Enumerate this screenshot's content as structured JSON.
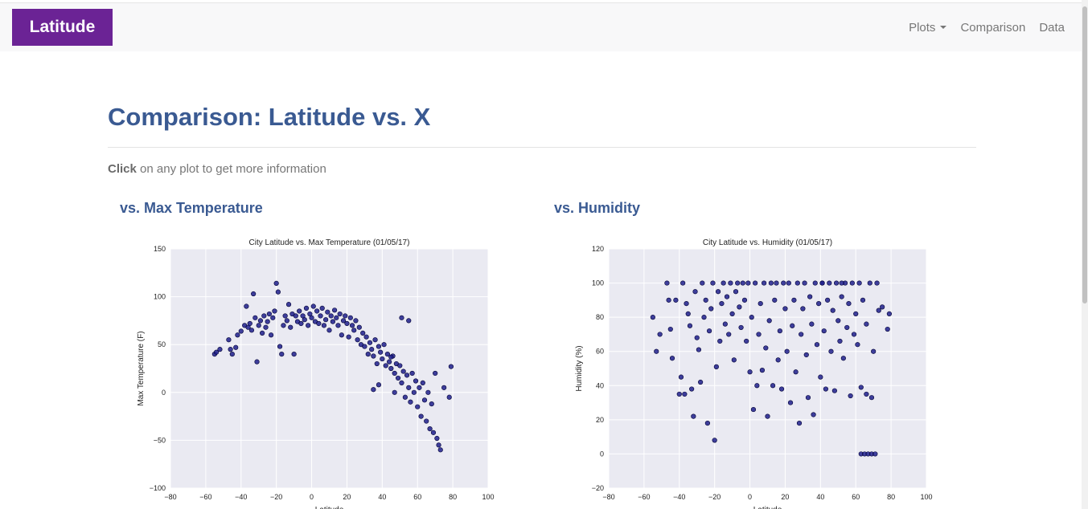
{
  "navbar": {
    "brand": "Latitude",
    "links": [
      {
        "label": "Plots",
        "dropdown": true
      },
      {
        "label": "Comparison",
        "dropdown": false
      },
      {
        "label": "Data",
        "dropdown": false
      }
    ]
  },
  "page": {
    "title": "Comparison: Latitude vs. X",
    "intro_bold": "Click",
    "intro_rest": " on any plot to get more information"
  },
  "colors": {
    "brand_bg": "#6b2395",
    "heading": "#3a5a92",
    "plot_bg": "#eaeaf2",
    "marker": "#1f1f8c"
  },
  "plots": [
    {
      "heading": "vs. Max Temperature",
      "chart_data": {
        "type": "scatter",
        "title": "City Latitude vs. Max Temperature (01/05/17)",
        "xlabel": "Latitude",
        "ylabel": "Max Temperature (F)",
        "xlim": [
          -80,
          100
        ],
        "ylim": [
          -100,
          150
        ],
        "xticks": [
          -80,
          -60,
          -40,
          -20,
          0,
          20,
          40,
          60,
          80,
          100
        ],
        "yticks": [
          -100,
          -50,
          0,
          50,
          100,
          150
        ],
        "grid": true,
        "points": [
          [
            -55,
            40
          ],
          [
            -54,
            42
          ],
          [
            -52,
            45
          ],
          [
            -47,
            55
          ],
          [
            -46,
            45
          ],
          [
            -45,
            40
          ],
          [
            -43,
            47
          ],
          [
            -42,
            60
          ],
          [
            -40,
            64
          ],
          [
            -38,
            70
          ],
          [
            -37,
            90
          ],
          [
            -36,
            68
          ],
          [
            -35,
            72
          ],
          [
            -34,
            65
          ],
          [
            -33,
            103
          ],
          [
            -32,
            78
          ],
          [
            -31,
            32
          ],
          [
            -30,
            70
          ],
          [
            -29,
            75
          ],
          [
            -28,
            62
          ],
          [
            -27,
            80
          ],
          [
            -26,
            68
          ],
          [
            -25,
            74
          ],
          [
            -24,
            82
          ],
          [
            -23,
            60
          ],
          [
            -22,
            78
          ],
          [
            -21,
            85
          ],
          [
            -20,
            114
          ],
          [
            -19,
            105
          ],
          [
            -18,
            48
          ],
          [
            -17,
            40
          ],
          [
            -16,
            70
          ],
          [
            -15,
            80
          ],
          [
            -14,
            75
          ],
          [
            -13,
            92
          ],
          [
            -12,
            68
          ],
          [
            -11,
            82
          ],
          [
            -10,
            40
          ],
          [
            -9,
            80
          ],
          [
            -8,
            74
          ],
          [
            -7,
            85
          ],
          [
            -6,
            72
          ],
          [
            -5,
            80
          ],
          [
            -4,
            76
          ],
          [
            -3,
            88
          ],
          [
            -2,
            70
          ],
          [
            -1,
            82
          ],
          [
            0,
            78
          ],
          [
            1,
            90
          ],
          [
            2,
            74
          ],
          [
            3,
            85
          ],
          [
            4,
            72
          ],
          [
            5,
            80
          ],
          [
            6,
            88
          ],
          [
            7,
            70
          ],
          [
            8,
            76
          ],
          [
            9,
            84
          ],
          [
            10,
            65
          ],
          [
            11,
            80
          ],
          [
            12,
            74
          ],
          [
            13,
            86
          ],
          [
            14,
            78
          ],
          [
            15,
            70
          ],
          [
            16,
            82
          ],
          [
            17,
            60
          ],
          [
            18,
            75
          ],
          [
            19,
            80
          ],
          [
            20,
            72
          ],
          [
            21,
            58
          ],
          [
            22,
            78
          ],
          [
            23,
            70
          ],
          [
            24,
            65
          ],
          [
            25,
            75
          ],
          [
            26,
            55
          ],
          [
            27,
            68
          ],
          [
            28,
            50
          ],
          [
            29,
            62
          ],
          [
            30,
            48
          ],
          [
            31,
            58
          ],
          [
            32,
            40
          ],
          [
            33,
            52
          ],
          [
            34,
            45
          ],
          [
            35,
            38
          ],
          [
            36,
            55
          ],
          [
            37,
            30
          ],
          [
            38,
            48
          ],
          [
            39,
            42
          ],
          [
            40,
            35
          ],
          [
            41,
            50
          ],
          [
            42,
            28
          ],
          [
            43,
            40
          ],
          [
            44,
            32
          ],
          [
            45,
            25
          ],
          [
            46,
            38
          ],
          [
            47,
            20
          ],
          [
            48,
            30
          ],
          [
            49,
            15
          ],
          [
            50,
            28
          ],
          [
            51,
            10
          ],
          [
            52,
            22
          ],
          [
            53,
            -5
          ],
          [
            54,
            18
          ],
          [
            55,
            5
          ],
          [
            56,
            -10
          ],
          [
            57,
            20
          ],
          [
            58,
            0
          ],
          [
            59,
            12
          ],
          [
            60,
            -15
          ],
          [
            61,
            5
          ],
          [
            62,
            -25
          ],
          [
            63,
            10
          ],
          [
            64,
            -8
          ],
          [
            65,
            -30
          ],
          [
            66,
            0
          ],
          [
            67,
            -38
          ],
          [
            68,
            -12
          ],
          [
            69,
            -42
          ],
          [
            70,
            20
          ],
          [
            71,
            -48
          ],
          [
            72,
            -55
          ],
          [
            73,
            -60
          ],
          [
            75,
            5
          ],
          [
            78,
            -5
          ],
          [
            79,
            27
          ],
          [
            51,
            78
          ],
          [
            55,
            75
          ],
          [
            35,
            3
          ],
          [
            38,
            8
          ],
          [
            47,
            0
          ],
          [
            45,
            37
          ]
        ]
      }
    },
    {
      "heading": "vs. Humidity",
      "chart_data": {
        "type": "scatter",
        "title": "City Latitude vs. Humidity (01/05/17)",
        "xlabel": "Latitude",
        "ylabel": "Humidity (%)",
        "xlim": [
          -80,
          100
        ],
        "ylim": [
          -20,
          120
        ],
        "xticks": [
          -80,
          -60,
          -40,
          -20,
          0,
          20,
          40,
          60,
          80,
          100
        ],
        "yticks": [
          -20,
          0,
          20,
          40,
          60,
          80,
          100,
          120
        ],
        "grid": true,
        "points": [
          [
            -55,
            80
          ],
          [
            -53,
            60
          ],
          [
            -51,
            70
          ],
          [
            -47,
            100
          ],
          [
            -46,
            90
          ],
          [
            -45,
            73
          ],
          [
            -44,
            56
          ],
          [
            -42,
            90
          ],
          [
            -40,
            35
          ],
          [
            -39,
            45
          ],
          [
            -38,
            100
          ],
          [
            -37,
            35
          ],
          [
            -36,
            88
          ],
          [
            -35,
            82
          ],
          [
            -34,
            75
          ],
          [
            -33,
            38
          ],
          [
            -32,
            22
          ],
          [
            -31,
            95
          ],
          [
            -30,
            68
          ],
          [
            -29,
            61
          ],
          [
            -28,
            42
          ],
          [
            -27,
            100
          ],
          [
            -26,
            80
          ],
          [
            -25,
            90
          ],
          [
            -24,
            18
          ],
          [
            -23,
            72
          ],
          [
            -22,
            85
          ],
          [
            -21,
            100
          ],
          [
            -20,
            8
          ],
          [
            -19,
            51
          ],
          [
            -18,
            95
          ],
          [
            -17,
            66
          ],
          [
            -16,
            88
          ],
          [
            -15,
            100
          ],
          [
            -14,
            76
          ],
          [
            -13,
            92
          ],
          [
            -12,
            70
          ],
          [
            -11,
            100
          ],
          [
            -10,
            82
          ],
          [
            -9,
            55
          ],
          [
            -8,
            95
          ],
          [
            -7,
            100
          ],
          [
            -6,
            86
          ],
          [
            -5,
            74
          ],
          [
            -4,
            100
          ],
          [
            -3,
            90
          ],
          [
            -2,
            66
          ],
          [
            -1,
            100
          ],
          [
            0,
            48
          ],
          [
            1,
            80
          ],
          [
            2,
            26
          ],
          [
            3,
            100
          ],
          [
            4,
            40
          ],
          [
            5,
            70
          ],
          [
            6,
            88
          ],
          [
            7,
            49
          ],
          [
            8,
            100
          ],
          [
            9,
            62
          ],
          [
            10,
            22
          ],
          [
            11,
            78
          ],
          [
            12,
            100
          ],
          [
            13,
            40
          ],
          [
            14,
            90
          ],
          [
            15,
            100
          ],
          [
            16,
            55
          ],
          [
            17,
            72
          ],
          [
            18,
            38
          ],
          [
            19,
            100
          ],
          [
            20,
            85
          ],
          [
            21,
            60
          ],
          [
            22,
            100
          ],
          [
            23,
            30
          ],
          [
            24,
            75
          ],
          [
            25,
            90
          ],
          [
            26,
            48
          ],
          [
            27,
            100
          ],
          [
            28,
            18
          ],
          [
            29,
            70
          ],
          [
            30,
            85
          ],
          [
            31,
            100
          ],
          [
            32,
            58
          ],
          [
            33,
            33
          ],
          [
            34,
            92
          ],
          [
            35,
            76
          ],
          [
            36,
            23
          ],
          [
            37,
            100
          ],
          [
            38,
            64
          ],
          [
            39,
            88
          ],
          [
            40,
            45
          ],
          [
            41,
            100
          ],
          [
            42,
            72
          ],
          [
            43,
            38
          ],
          [
            44,
            90
          ],
          [
            45,
            100
          ],
          [
            46,
            60
          ],
          [
            47,
            84
          ],
          [
            48,
            37
          ],
          [
            49,
            100
          ],
          [
            50,
            78
          ],
          [
            51,
            66
          ],
          [
            52,
            92
          ],
          [
            53,
            56
          ],
          [
            54,
            100
          ],
          [
            55,
            74
          ],
          [
            56,
            88
          ],
          [
            57,
            34
          ],
          [
            58,
            100
          ],
          [
            59,
            70
          ],
          [
            60,
            82
          ],
          [
            61,
            64
          ],
          [
            62,
            100
          ],
          [
            63,
            0
          ],
          [
            64,
            90
          ],
          [
            65,
            0
          ],
          [
            66,
            76
          ],
          [
            67,
            0
          ],
          [
            68,
            100
          ],
          [
            69,
            0
          ],
          [
            70,
            60
          ],
          [
            71,
            0
          ],
          [
            72,
            100
          ],
          [
            73,
            84
          ],
          [
            75,
            86
          ],
          [
            78,
            73
          ],
          [
            79,
            82
          ],
          [
            63,
            39
          ],
          [
            66,
            35
          ],
          [
            69,
            33
          ],
          [
            41,
            100
          ],
          [
            52,
            100
          ]
        ]
      }
    }
  ]
}
